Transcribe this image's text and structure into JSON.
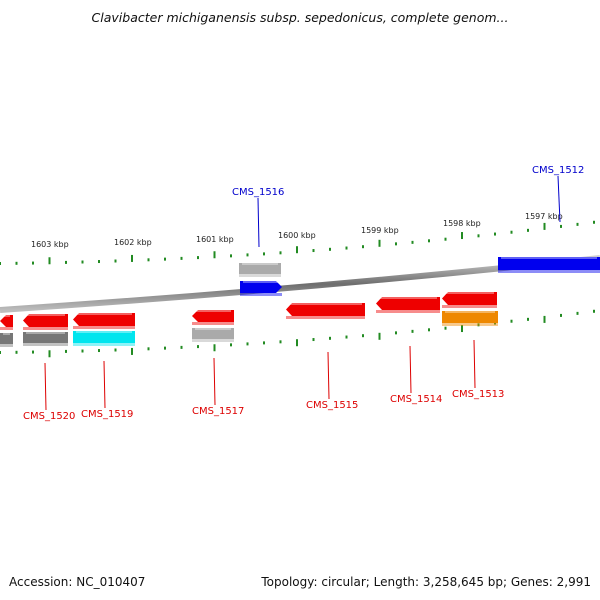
{
  "title": "Clavibacter michiganensis subsp. sepedonicus, complete genom...",
  "footer": {
    "accession_label": "Accession:",
    "accession": "NC_010407",
    "topology_text": "Topology: circular; Length: 3,258,645 bp; Genes: 2,991"
  },
  "colors": {
    "backbone": "#888888",
    "tick": "#228B22",
    "forward_label": "#0000cc",
    "reverse_label": "#dd0000"
  },
  "scale_ticks": [
    "1603 kbp",
    "1602 kbp",
    "1601 kbp",
    "1600 kbp",
    "1599 kbp",
    "1598 kbp",
    "1597 kbp"
  ],
  "genes": [
    {
      "label": "CMS_1512",
      "strand": "forward",
      "color": "#0000ee"
    },
    {
      "label": "CMS_1513",
      "strand": "reverse",
      "color": "#ee0000"
    },
    {
      "label": "CMS_1514",
      "strand": "reverse",
      "color": "#ee0000"
    },
    {
      "label": "CMS_1515",
      "strand": "reverse",
      "color": "#ee0000"
    },
    {
      "label": "CMS_1516",
      "strand": "forward",
      "color": "#0000ee"
    },
    {
      "label": "CMS_1517",
      "strand": "reverse",
      "color": "#ee0000"
    },
    {
      "label": "CMS_1519",
      "strand": "reverse",
      "color": "#ee0000"
    },
    {
      "label": "CMS_1520",
      "strand": "reverse",
      "color": "#ee0000"
    }
  ],
  "features": [
    {
      "type": "gene",
      "color": "#ee0000"
    },
    {
      "type": "CDS",
      "color": "#0000ee"
    },
    {
      "type": "rRNA/tRNA",
      "color": "#00e5ee"
    },
    {
      "type": "misc",
      "color": "#ee8800"
    },
    {
      "type": "pseudo",
      "color": "#777777"
    }
  ]
}
